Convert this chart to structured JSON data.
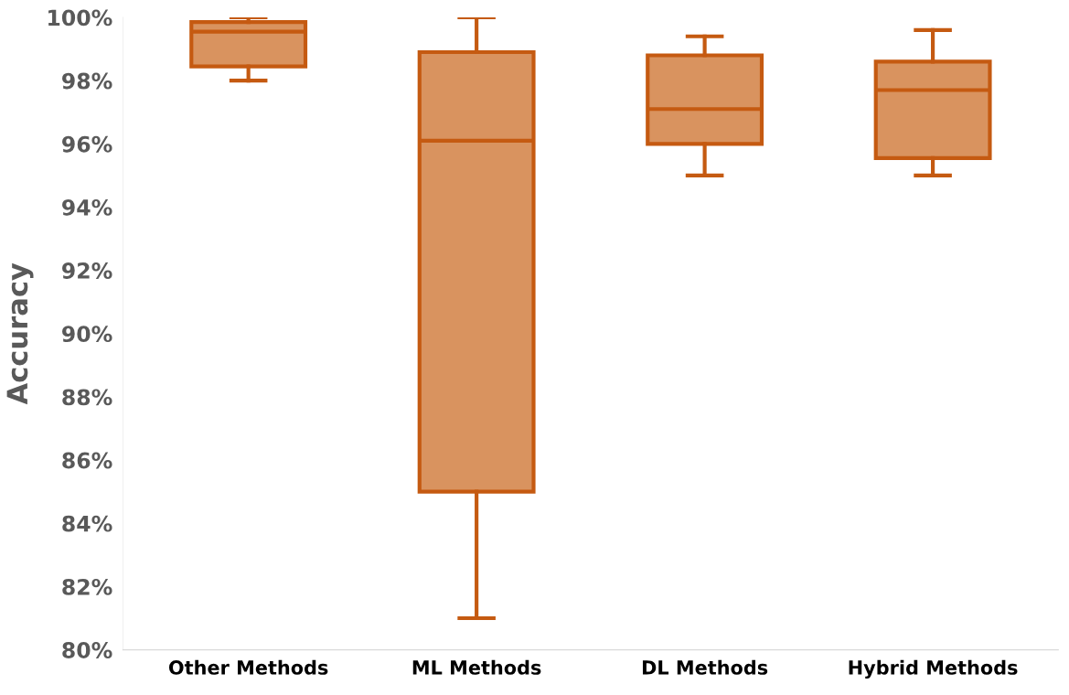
{
  "chart_data": {
    "type": "box",
    "ylabel": "Accuracy",
    "categories": [
      "Other Methods",
      "ML Methods",
      "DL Methods",
      "Hybrid Methods"
    ],
    "boxes": [
      {
        "low": 98.0,
        "q1": 98.45,
        "median": 99.55,
        "q3": 99.85,
        "high": 100.0
      },
      {
        "low": 81.0,
        "q1": 85.0,
        "median": 96.1,
        "q3": 98.9,
        "high": 100.0
      },
      {
        "low": 95.0,
        "q1": 96.0,
        "median": 97.1,
        "q3": 98.8,
        "high": 99.4
      },
      {
        "low": 95.0,
        "q1": 95.55,
        "median": 97.7,
        "q3": 98.6,
        "high": 99.6
      }
    ],
    "color": "#d9935f",
    "ylim": [
      80,
      100
    ],
    "yticks": [
      {
        "value": 80,
        "label": "80%"
      },
      {
        "value": 82,
        "label": "82%"
      },
      {
        "value": 84,
        "label": "84%"
      },
      {
        "value": 86,
        "label": "86%"
      },
      {
        "value": 88,
        "label": "88%"
      },
      {
        "value": 90,
        "label": "90%"
      },
      {
        "value": 92,
        "label": "92%"
      },
      {
        "value": 94,
        "label": "94%"
      },
      {
        "value": 96,
        "label": "96%"
      },
      {
        "value": 98,
        "label": "98%"
      },
      {
        "value": 100,
        "label": "100%"
      }
    ],
    "grid": false
  }
}
